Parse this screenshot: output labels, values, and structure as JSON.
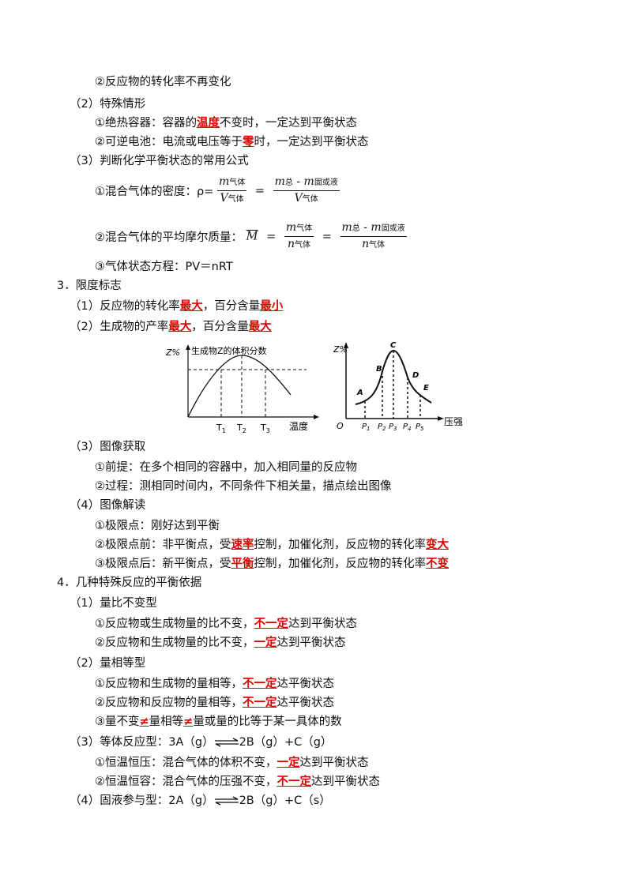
{
  "lines": {
    "a2": "②反应物的转化率不再变化",
    "s2": "（2）特殊情形",
    "s2_1a": "①绝热容器：容器的",
    "s2_1b": "温度",
    "s2_1c": "不变时，一定达到平衡状态",
    "s2_2a": "②可逆电池：电流或电压等于",
    "s2_2b": "零",
    "s2_2c": "时，一定达到平衡状态",
    "s3": "（3）判断化学平衡状态的常用公式",
    "f1_label": "①混合气体的密度：ρ=",
    "f2_label": "②混合气体的平均摩尔质量：",
    "f3": "③气体状态方程：PV＝nRT",
    "h3": "3．限度标志",
    "h3_1a": "（1）反应物的转化率",
    "h3_1b": "最大",
    "h3_1c": "，百分含量",
    "h3_1d": "最小",
    "h3_2a": "（2）生成物的产率",
    "h3_2b": "最大",
    "h3_2c": "，百分含量",
    "h3_2d": "最大",
    "h3_3": "（3）图像获取",
    "h3_3_1": "①前提：在多个相同的容器中，加入相同量的反应物",
    "h3_3_2": "②过程：测相同时间内，不同条件下相关量，描点绘出图像",
    "h3_4": "（4）图像解读",
    "h3_4_1": "①极限点：刚好达到平衡",
    "h3_4_2a": "②极限点前：非平衡点，受",
    "h3_4_2b": "速率",
    "h3_4_2c": "控制，加催化剂，反应物的转化率",
    "h3_4_2d": "变大",
    "h3_4_3a": "③极限点后：新平衡点，受",
    "h3_4_3b": "平衡",
    "h3_4_3c": "控制，加催化剂，反应物的转化率",
    "h3_4_3d": "不变",
    "h4": "4．几种特殊反应的平衡依据",
    "h4_1": "（1）量比不变型",
    "h4_1_1a": "①反应物或生成物量的比不变，",
    "h4_1_1b": "不一定",
    "h4_1_1c": "达到平衡状态",
    "h4_1_2a": "②反应物和生成物量的比不变，",
    "h4_1_2b": "一定",
    "h4_1_2c": "达到平衡状态",
    "h4_2": "（2）量相等型",
    "h4_2_1a": "①反应物和生成物的量相等，",
    "h4_2_1b": "不一定",
    "h4_2_1c": "达平衡状态",
    "h4_2_2a": "②反应物和反应物的量相等，",
    "h4_2_2b": "不一定",
    "h4_2_2c": "达平衡状态",
    "h4_2_3a": "③量不变",
    "h4_2_3b": "≠",
    "h4_2_3c": "量相等",
    "h4_2_3d": "≠",
    "h4_2_3e": "量或量的比等于某一具体的数",
    "h4_3a": "（3）等体反应型：3A（g）",
    "h4_3b": "2B（g）+C（g）",
    "h4_3_1a": "①恒温恒压：混合气体的体积不变，",
    "h4_3_1b": "一定",
    "h4_3_1c": "达到平衡状态",
    "h4_3_2a": "②恒温恒容：混合气体的压强不变，",
    "h4_3_2b": "不一定",
    "h4_3_2c": "达到平衡状态",
    "h4_4a": "（4）固液参与型：2A（g）",
    "h4_4b": "2B（g）+C（s）"
  },
  "formulas": {
    "rho_n1": "m",
    "rho_n1_sub": "气体",
    "rho_d1": "V",
    "rho_d1_sub": "气体",
    "rho_n2": "m",
    "rho_n2_sub1": "总",
    "rho_n2_mid": " - m",
    "rho_n2_sub2": "固或液",
    "rho_d2": "V",
    "rho_d2_sub": "气体",
    "eq": "=",
    "mbar": "M",
    "mm_n1": "m",
    "mm_n1_sub": "气体",
    "mm_d1": "n",
    "mm_d1_sub": "气体",
    "mm_n2": "m",
    "mm_n2_sub1": "总",
    "mm_n2_mid": " - m",
    "mm_n2_sub2": "固或液",
    "mm_d2": "n",
    "mm_d2_sub": "气体"
  },
  "graph1": {
    "ylabel": "Z%",
    "title": "生成物Z的体积分数",
    "xlabel": "温度",
    "ticks": [
      "T",
      "T",
      "T"
    ],
    "tick_subs": [
      "1",
      "2",
      "3"
    ]
  },
  "graph2": {
    "ylabel": "Z%",
    "xlabel": "压强",
    "origin": "O",
    "points": [
      "A",
      "B",
      "C",
      "D",
      "E"
    ],
    "ticks": [
      "P",
      "P",
      "P",
      "P",
      "P"
    ],
    "tick_subs": [
      "1",
      "2",
      "3",
      "4",
      "5"
    ]
  },
  "colors": {
    "emphasis": "#e00000",
    "text": "#111111"
  }
}
